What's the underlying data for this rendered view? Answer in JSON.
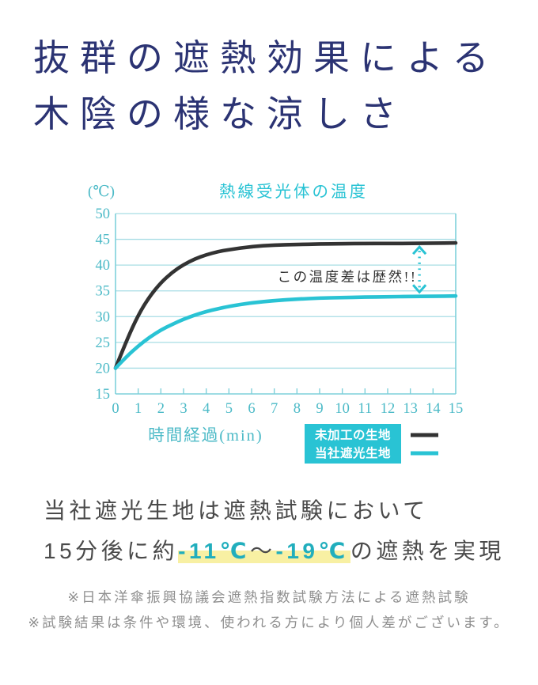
{
  "page_title": {
    "line1": "抜群の遮熱効果による",
    "line2": "木陰の様な涼しさ"
  },
  "chart_data": {
    "type": "line",
    "title": "熱線受光体の温度",
    "y_unit_label": "(℃)",
    "xlabel": "時間経過(min)",
    "xlim": [
      0,
      15
    ],
    "ylim": [
      15,
      50
    ],
    "x_ticks": [
      0,
      1,
      2,
      3,
      4,
      5,
      6,
      7,
      8,
      9,
      10,
      11,
      12,
      13,
      14,
      15
    ],
    "y_ticks": [
      15,
      20,
      25,
      30,
      35,
      40,
      45,
      50
    ],
    "grid": "horizontal",
    "annotation": "この温度差は歴然!!",
    "legend_position": "bottom-right",
    "series": [
      {
        "name": "未加工の生地",
        "color": "#333333",
        "x": [
          0,
          0.5,
          1,
          1.5,
          2,
          2.5,
          3,
          3.5,
          4,
          4.5,
          5,
          6,
          7,
          8,
          9,
          10,
          11,
          12,
          13,
          14,
          15
        ],
        "y": [
          20,
          25.5,
          30.3,
          33.9,
          36.6,
          38.6,
          40.1,
          41.2,
          42.0,
          42.6,
          43.0,
          43.6,
          43.9,
          44.0,
          44.1,
          44.15,
          44.2,
          44.2,
          44.2,
          44.25,
          44.3
        ]
      },
      {
        "name": "当社遮光生地",
        "color": "#29c3d4",
        "x": [
          0,
          0.5,
          1,
          1.5,
          2,
          2.5,
          3,
          3.5,
          4,
          4.5,
          5,
          6,
          7,
          8,
          9,
          10,
          11,
          12,
          13,
          14,
          15
        ],
        "y": [
          20,
          22.3,
          24.3,
          26.0,
          27.4,
          28.5,
          29.5,
          30.3,
          31.0,
          31.5,
          32.0,
          32.7,
          33.1,
          33.4,
          33.6,
          33.7,
          33.8,
          33.85,
          33.9,
          33.95,
          34.0
        ]
      }
    ]
  },
  "claim": {
    "line1": "当社遮光生地は遮熱試験において",
    "line2_prefix": "15分後に約",
    "temp1": "-11℃",
    "tilde": "〜",
    "temp2": "-19℃",
    "line2_suffix": "の遮熱を実現"
  },
  "footnotes": {
    "line1": "※日本洋傘振興協議会遮熱指数試験方法による遮熱試験",
    "line2": "※試験結果は条件や環境、使われる方により個人差がございます。"
  },
  "colors": {
    "title_navy": "#2b3373",
    "accent_cyan": "#29c3d4",
    "grid_cyan": "#a7dde4",
    "axis_cyan": "#7fd0da",
    "tick_label_cyan": "#4cbac7",
    "dark_line": "#333333",
    "annotation_dark": "#333333",
    "legend_bg": "#29c3d4",
    "legend_text": "#ffffff",
    "body_text": "#4a4a4a",
    "temp_teal": "#21aebd",
    "highlight_yellow": "#f8f0a3",
    "footnote_gray": "#8f8f8f"
  }
}
